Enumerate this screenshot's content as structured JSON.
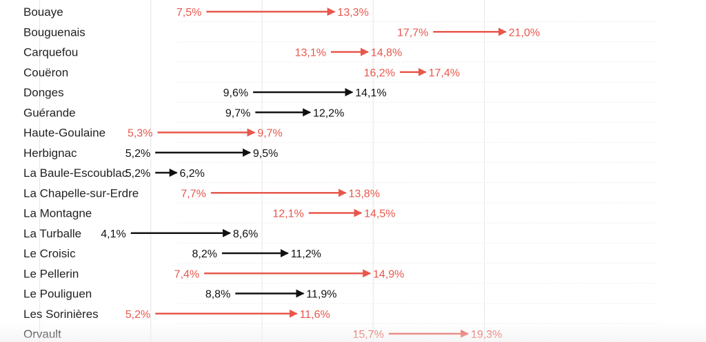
{
  "chart_data": {
    "type": "dumbbell-arrow",
    "colors": {
      "up_highlight": "#e8574b",
      "up_normal": "#111111",
      "grid": "#e6e6e6",
      "row_divider": "#ebebeb",
      "label": "#222222"
    },
    "rows": [
      {
        "commune": "Bouaye",
        "start": 7.5,
        "end": 13.3,
        "start_label": "7,5%",
        "end_label": "13,3%",
        "highlight": true
      },
      {
        "commune": "Bouguenais",
        "start": 17.7,
        "end": 21.0,
        "start_label": "17,7%",
        "end_label": "21,0%",
        "highlight": true
      },
      {
        "commune": "Carquefou",
        "start": 13.1,
        "end": 14.8,
        "start_label": "13,1%",
        "end_label": "14,8%",
        "highlight": true
      },
      {
        "commune": "Couëron",
        "start": 16.2,
        "end": 17.4,
        "start_label": "16,2%",
        "end_label": "17,4%",
        "highlight": true
      },
      {
        "commune": "Donges",
        "start": 9.6,
        "end": 14.1,
        "start_label": "9,6%",
        "end_label": "14,1%",
        "highlight": false
      },
      {
        "commune": "Guérande",
        "start": 9.7,
        "end": 12.2,
        "start_label": "9,7%",
        "end_label": "12,2%",
        "highlight": false
      },
      {
        "commune": "Haute-Goulaine",
        "start": 5.3,
        "end": 9.7,
        "start_label": "5,3%",
        "end_label": "9,7%",
        "highlight": true
      },
      {
        "commune": "Herbignac",
        "start": 5.2,
        "end": 9.5,
        "start_label": "5,2%",
        "end_label": "9,5%",
        "highlight": false
      },
      {
        "commune": "La Baule-Escoublac",
        "start": 5.2,
        "end": 6.2,
        "start_label": "5,2%",
        "end_label": "6,2%",
        "highlight": false
      },
      {
        "commune": "La Chapelle-sur-Erdre",
        "start": 7.7,
        "end": 13.8,
        "start_label": "7,7%",
        "end_label": "13,8%",
        "highlight": true
      },
      {
        "commune": "La Montagne",
        "start": 12.1,
        "end": 14.5,
        "start_label": "12,1%",
        "end_label": "14,5%",
        "highlight": true
      },
      {
        "commune": "La Turballe",
        "start": 4.1,
        "end": 8.6,
        "start_label": "4,1%",
        "end_label": "8,6%",
        "highlight": false
      },
      {
        "commune": "Le Croisic",
        "start": 8.2,
        "end": 11.2,
        "start_label": "8,2%",
        "end_label": "11,2%",
        "highlight": false
      },
      {
        "commune": "Le Pellerin",
        "start": 7.4,
        "end": 14.9,
        "start_label": "7,4%",
        "end_label": "14,9%",
        "highlight": true
      },
      {
        "commune": "Le Pouliguen",
        "start": 8.8,
        "end": 11.9,
        "start_label": "8,8%",
        "end_label": "11,9%",
        "highlight": false
      },
      {
        "commune": "Les Sorinières",
        "start": 5.2,
        "end": 11.6,
        "start_label": "5,2%",
        "end_label": "11,6%",
        "highlight": true
      },
      {
        "commune": "Orvault",
        "start": 15.7,
        "end": 19.3,
        "start_label": "15,7%",
        "end_label": "19,3%",
        "highlight": true
      }
    ],
    "gridlines": [
      0,
      5,
      10,
      15,
      20
    ],
    "xlim": [
      0,
      21.5
    ]
  }
}
